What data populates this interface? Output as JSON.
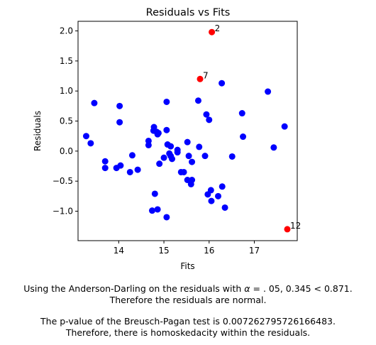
{
  "chart_data": {
    "type": "scatter",
    "title": "Residuals vs Fits",
    "xlabel": "Fits",
    "ylabel": "Residuals",
    "xlim": [
      13.1,
      17.95
    ],
    "ylim": [
      -1.49,
      2.16
    ],
    "xticks": [
      14,
      15,
      16,
      17
    ],
    "yticks": [
      -1.0,
      -0.5,
      0.0,
      0.5,
      1.0,
      1.5,
      2.0
    ],
    "xtick_labels": [
      "14",
      "15",
      "16",
      "17"
    ],
    "ytick_labels": [
      "−1.0",
      "−0.5",
      "0.0",
      "0.5",
      "1.0",
      "1.5",
      "2.0"
    ],
    "grid": false,
    "series": [
      {
        "color": "#0000ff",
        "points": [
          [
            13.28,
            0.25
          ],
          [
            13.38,
            0.13
          ],
          [
            13.46,
            0.8
          ],
          [
            13.7,
            -0.17
          ],
          [
            13.7,
            -0.28
          ],
          [
            13.95,
            -0.28
          ],
          [
            14.02,
            0.75
          ],
          [
            14.02,
            0.48
          ],
          [
            14.04,
            -0.24
          ],
          [
            14.25,
            -0.35
          ],
          [
            14.3,
            -0.07
          ],
          [
            14.42,
            -0.31
          ],
          [
            14.66,
            0.17
          ],
          [
            14.66,
            0.1
          ],
          [
            14.74,
            -0.99
          ],
          [
            14.77,
            0.34
          ],
          [
            14.78,
            0.4
          ],
          [
            14.8,
            -0.71
          ],
          [
            14.84,
            0.32
          ],
          [
            14.86,
            -0.97
          ],
          [
            14.86,
            0.28
          ],
          [
            14.88,
            0.3
          ],
          [
            14.9,
            -0.21
          ],
          [
            15.0,
            -0.11
          ],
          [
            15.06,
            0.82
          ],
          [
            15.06,
            0.35
          ],
          [
            15.06,
            -1.1
          ],
          [
            15.08,
            0.11
          ],
          [
            15.12,
            -0.04
          ],
          [
            15.15,
            -0.08
          ],
          [
            15.15,
            0.08
          ],
          [
            15.18,
            -0.13
          ],
          [
            15.3,
            0.02
          ],
          [
            15.3,
            -0.02
          ],
          [
            15.38,
            -0.35
          ],
          [
            15.44,
            -0.35
          ],
          [
            15.52,
            0.15
          ],
          [
            15.52,
            -0.48
          ],
          [
            15.55,
            -0.08
          ],
          [
            15.6,
            -0.55
          ],
          [
            15.62,
            -0.48
          ],
          [
            15.62,
            -0.18
          ],
          [
            15.76,
            0.84
          ],
          [
            15.78,
            0.07
          ],
          [
            15.91,
            -0.08
          ],
          [
            15.94,
            0.61
          ],
          [
            15.97,
            -0.72
          ],
          [
            16.0,
            0.52
          ],
          [
            16.04,
            -0.65
          ],
          [
            16.05,
            -0.83
          ],
          [
            16.2,
            -0.75
          ],
          [
            16.28,
            1.13
          ],
          [
            16.29,
            -0.59
          ],
          [
            16.35,
            -0.94
          ],
          [
            16.51,
            -0.09
          ],
          [
            16.73,
            0.63
          ],
          [
            16.75,
            0.24
          ],
          [
            17.3,
            0.99
          ],
          [
            17.43,
            0.06
          ],
          [
            17.67,
            0.41
          ]
        ]
      },
      {
        "color": "#ff0000",
        "points": [
          [
            16.06,
            1.98
          ],
          [
            15.8,
            1.2
          ],
          [
            17.73,
            -1.3
          ]
        ]
      }
    ],
    "annotations": [
      {
        "text": "2",
        "x": 16.06,
        "y": 1.98
      },
      {
        "text": "7",
        "x": 15.8,
        "y": 1.2
      },
      {
        "text": "12",
        "x": 17.73,
        "y": -1.3
      }
    ]
  },
  "captions": {
    "anderson_line1_pre": "Using the Anderson-Darling on the residuals with ",
    "anderson_alpha_symbol": "α",
    "anderson_line1_post": " = . 05, 0.345 < 0.871.",
    "anderson_line2": "Therefore the residuals are normal.",
    "bp_line1": "The p-value of the Breusch-Pagan test is 0.007262795726166483.",
    "bp_line2": "Therefore, there is homoskedacity within the residuals."
  }
}
